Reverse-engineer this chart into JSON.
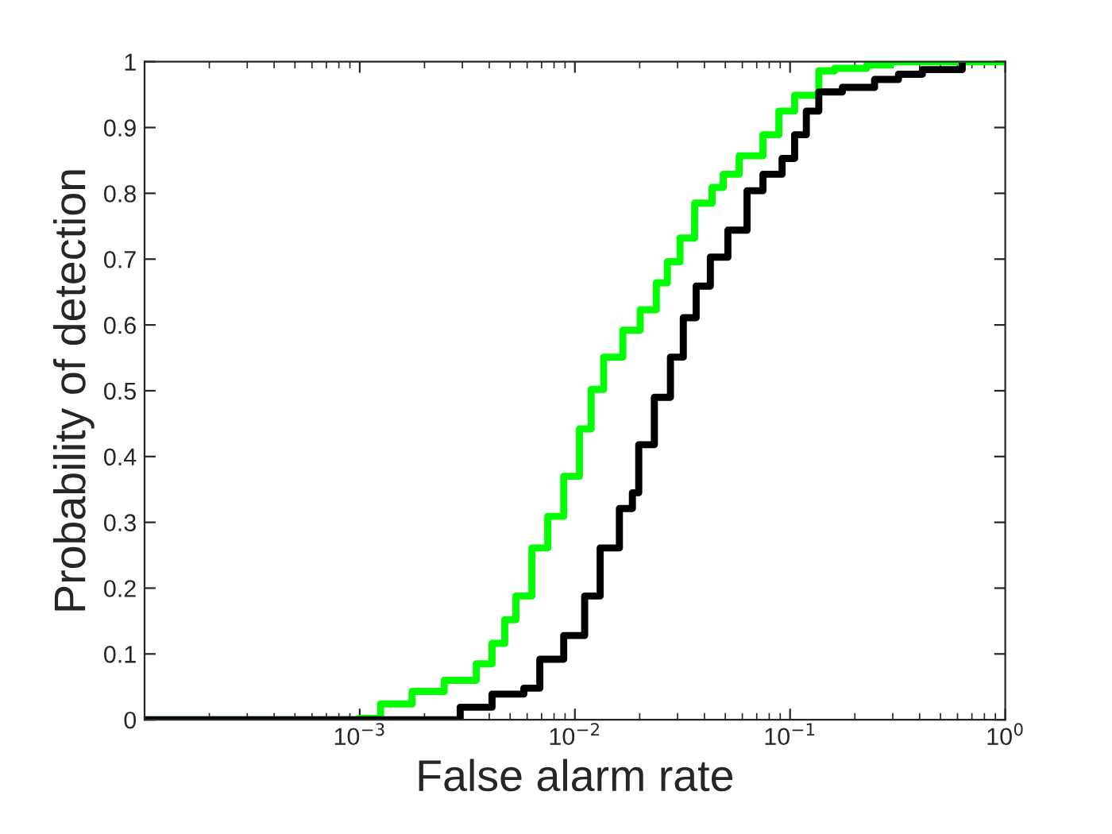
{
  "chart_data": {
    "type": "step",
    "xlabel": "False alarm rate",
    "ylabel": "Probability of detection",
    "log": "x",
    "xlim": [
      0.0001,
      1
    ],
    "xticks": [
      {
        "value": 0.001,
        "label": "10$^{−3}$"
      },
      {
        "value": 0.01,
        "label": "10$^{−2}$"
      },
      {
        "value": 0.1,
        "label": "10$^{−1}$"
      },
      {
        "value": 1,
        "label": "10$^{0}$"
      }
    ],
    "ylim": [
      0,
      1
    ],
    "yticks": [
      0,
      0.1,
      0.2,
      0.3,
      0.4,
      0.5,
      0.6,
      0.7,
      0.8,
      0.9,
      1
    ],
    "grid": false,
    "line_style": "solid",
    "marker": "none",
    "series": [
      {
        "color": "#00ff00",
        "x": [
          0.0001,
          0.001,
          0.00125,
          0.00175,
          0.00247,
          0.00348,
          0.00412,
          0.00472,
          0.00532,
          0.00631,
          0.00748,
          0.00887,
          0.0105,
          0.0119,
          0.0136,
          0.0167,
          0.0201,
          0.0239,
          0.0269,
          0.0308,
          0.036,
          0.0434,
          0.0489,
          0.058,
          0.0748,
          0.0887,
          0.105,
          0.136,
          0.161,
          0.227,
          0.293,
          1
        ],
        "values": [
          0,
          0.002,
          0.024,
          0.043,
          0.06,
          0.085,
          0.116,
          0.152,
          0.188,
          0.261,
          0.309,
          0.37,
          0.442,
          0.502,
          0.551,
          0.592,
          0.623,
          0.664,
          0.696,
          0.732,
          0.785,
          0.809,
          0.829,
          0.857,
          0.889,
          0.925,
          0.949,
          0.986,
          0.99,
          0.995,
          1,
          1
        ]
      },
      {
        "color": "#000000",
        "x": [
          0.0001,
          0.00247,
          0.00293,
          0.00412,
          0.00579,
          0.00687,
          0.00887,
          0.0111,
          0.0131,
          0.0161,
          0.0185,
          0.0198,
          0.0234,
          0.0278,
          0.0319,
          0.0366,
          0.0426,
          0.0514,
          0.0631,
          0.0748,
          0.0918,
          0.105,
          0.119,
          0.136,
          0.175,
          0.247,
          0.319,
          0.412,
          0.631
        ],
        "values": [
          0,
          0,
          0.019,
          0.039,
          0.048,
          0.092,
          0.128,
          0.188,
          0.261,
          0.321,
          0.345,
          0.418,
          0.49,
          0.551,
          0.611,
          0.659,
          0.703,
          0.744,
          0.804,
          0.829,
          0.853,
          0.889,
          0.925,
          0.954,
          0.961,
          0.973,
          0.981,
          0.988,
          0.993
        ]
      }
    ]
  }
}
